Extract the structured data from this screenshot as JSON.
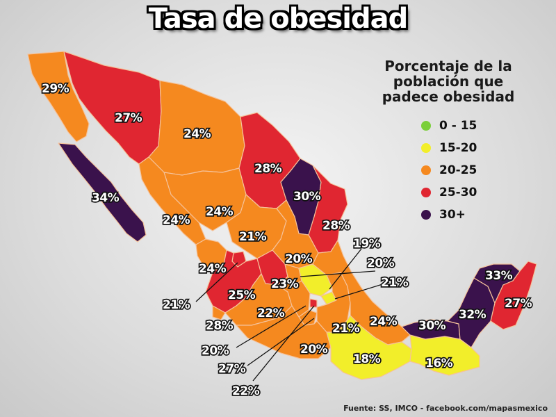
{
  "title": "Tasa de obesidad",
  "legend": {
    "title_lines": [
      "Porcentaje de la",
      "población que",
      "padece obesidad"
    ],
    "items": [
      {
        "label": "0 - 15",
        "color": "#7bcf3a"
      },
      {
        "label": "15-20",
        "color": "#f2ee2a"
      },
      {
        "label": "20-25",
        "color": "#f5891f"
      },
      {
        "label": "25-30",
        "color": "#e02631"
      },
      {
        "label": "30+",
        "color": "#3a124c"
      }
    ]
  },
  "colors": {
    "green": "#7bcf3a",
    "yellow": "#f2ee2a",
    "orange": "#f5891f",
    "red": "#e02631",
    "purple": "#3a124c",
    "border": "#f5c29a"
  },
  "labels": {
    "baja_california": "29%",
    "sonora": "27%",
    "chihuahua": "24%",
    "baja_california_sur": "34%",
    "coahuila": "28%",
    "nuevo_leon": "30%",
    "tamaulipas": "28%",
    "durango": "24%",
    "sinaloa": "24%",
    "zacatecas": "21%",
    "san_luis_potosi": "20%",
    "nayarit": "24%",
    "aguascalientes": "21%",
    "guanajuato": "23%",
    "jalisco": "25%",
    "hidalgo": "19%",
    "queretaro": "20%",
    "tlaxcala": "21%",
    "michoacan": "22%",
    "colima": "28%",
    "estado_mexico": "20%",
    "morelos": "27%",
    "cdmx": "22%",
    "puebla": "21%",
    "veracruz": "24%",
    "guerrero": "20%",
    "oaxaca": "18%",
    "tabasco": "30%",
    "campeche": "32%",
    "yucatan": "33%",
    "quintana_roo": "27%",
    "chiapas": "16%"
  },
  "source": "Fuente: SS, IMCO - facebook.com/mapasmexico"
}
